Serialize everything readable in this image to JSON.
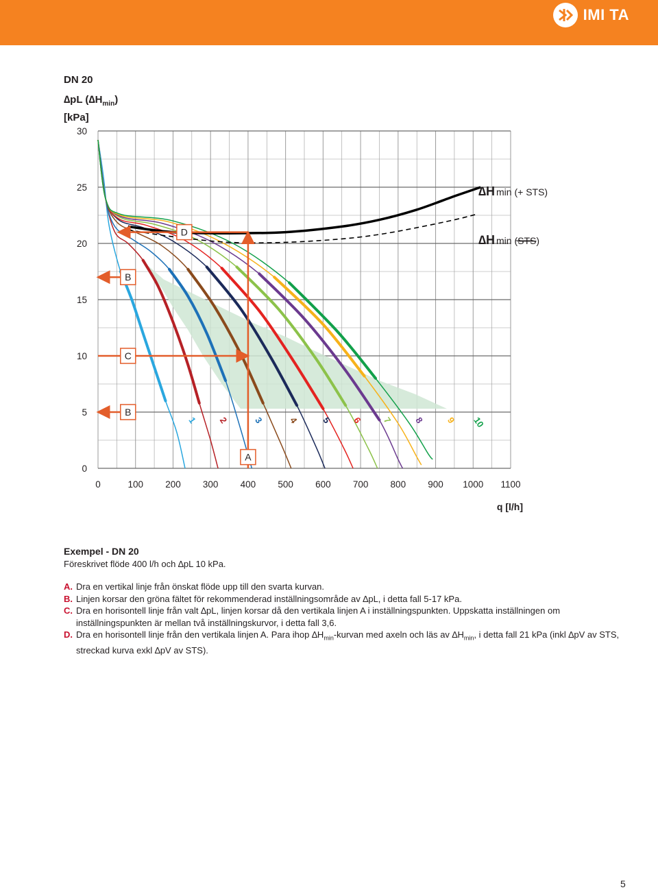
{
  "brand": {
    "name": "IMI TA",
    "logo": "imi-ta-logo-icon"
  },
  "page": {
    "heading": "DN 20",
    "number": "5"
  },
  "colors": {
    "header": "#f58220",
    "arrow": "#e35d2a",
    "green_field": "#cfe6d3",
    "grid": "#9a9a9a",
    "hmin_solid": "#000000",
    "hmin_dashed": "#000000"
  },
  "chart_data": {
    "type": "line",
    "title": "DN 20",
    "ylabel": "∆pL (∆Hmin) [kPa]",
    "ylabel_parts": [
      "∆pL (∆H",
      "min",
      ")",
      "[kPa]"
    ],
    "xlabel": "q [l/h]",
    "xlim": [
      0,
      1100
    ],
    "ylim": [
      0,
      30
    ],
    "xticks": [
      0,
      100,
      200,
      300,
      400,
      500,
      600,
      700,
      800,
      900,
      1000,
      1100
    ],
    "yticks": [
      0,
      5,
      10,
      15,
      20,
      25,
      30
    ],
    "grid": true,
    "settings": [
      {
        "name": "1",
        "color": "#2aa7df",
        "points": [
          [
            0,
            29.2
          ],
          [
            15,
            25.8
          ],
          [
            30,
            21.5
          ],
          [
            60,
            17.5
          ],
          [
            90,
            15.0
          ],
          [
            120,
            12.0
          ],
          [
            150,
            9.0
          ],
          [
            180,
            6.0
          ],
          [
            210,
            3.2
          ],
          [
            232,
            0
          ]
        ]
      },
      {
        "name": "2",
        "color": "#b62126",
        "points": [
          [
            0,
            29.2
          ],
          [
            20,
            24.0
          ],
          [
            45,
            21.0
          ],
          [
            80,
            20.0
          ],
          [
            120,
            18.5
          ],
          [
            160,
            16.2
          ],
          [
            200,
            13.0
          ],
          [
            240,
            9.2
          ],
          [
            270,
            5.8
          ],
          [
            300,
            2.5
          ],
          [
            320,
            0
          ]
        ]
      },
      {
        "name": "3",
        "color": "#1d71b8",
        "points": [
          [
            0,
            29.2
          ],
          [
            20,
            24.0
          ],
          [
            45,
            21.5
          ],
          [
            90,
            20.4
          ],
          [
            140,
            19.3
          ],
          [
            190,
            17.7
          ],
          [
            240,
            15.3
          ],
          [
            290,
            12.0
          ],
          [
            340,
            7.8
          ],
          [
            380,
            3.5
          ],
          [
            410,
            0
          ]
        ]
      },
      {
        "name": "4",
        "color": "#8a4a1c",
        "points": [
          [
            0,
            29.2
          ],
          [
            20,
            24.0
          ],
          [
            50,
            21.9
          ],
          [
            100,
            21.0
          ],
          [
            170,
            19.8
          ],
          [
            240,
            17.7
          ],
          [
            310,
            14.4
          ],
          [
            380,
            10.2
          ],
          [
            440,
            5.8
          ],
          [
            490,
            2.0
          ],
          [
            515,
            0
          ]
        ]
      },
      {
        "name": "5",
        "color": "#1b2a5a",
        "points": [
          [
            0,
            29.2
          ],
          [
            20,
            24.0
          ],
          [
            55,
            22.1
          ],
          [
            120,
            21.4
          ],
          [
            200,
            20.2
          ],
          [
            290,
            17.9
          ],
          [
            380,
            14.2
          ],
          [
            460,
            9.9
          ],
          [
            530,
            5.6
          ],
          [
            580,
            2.0
          ],
          [
            605,
            0
          ]
        ]
      },
      {
        "name": "6",
        "color": "#e42320",
        "points": [
          [
            0,
            29.2
          ],
          [
            20,
            24.0
          ],
          [
            55,
            22.2
          ],
          [
            130,
            21.6
          ],
          [
            230,
            20.3
          ],
          [
            330,
            17.8
          ],
          [
            430,
            14.0
          ],
          [
            520,
            9.6
          ],
          [
            600,
            5.3
          ],
          [
            655,
            1.8
          ],
          [
            680,
            0
          ]
        ]
      },
      {
        "name": "7",
        "color": "#8cc24a",
        "points": [
          [
            0,
            29.2
          ],
          [
            20,
            24.0
          ],
          [
            60,
            22.3
          ],
          [
            150,
            21.7
          ],
          [
            260,
            20.4
          ],
          [
            370,
            17.9
          ],
          [
            480,
            14.2
          ],
          [
            580,
            9.8
          ],
          [
            660,
            5.6
          ],
          [
            720,
            1.8
          ],
          [
            745,
            0
          ]
        ]
      },
      {
        "name": "8",
        "color": "#6b3a8f",
        "points": [
          [
            0,
            29.2
          ],
          [
            20,
            24.0
          ],
          [
            60,
            22.4
          ],
          [
            170,
            21.8
          ],
          [
            300,
            20.2
          ],
          [
            430,
            17.3
          ],
          [
            550,
            13.3
          ],
          [
            660,
            8.7
          ],
          [
            750,
            4.3
          ],
          [
            800,
            0.8
          ],
          [
            812,
            0
          ]
        ]
      },
      {
        "name": "9",
        "color": "#f7b21b",
        "points": [
          [
            0,
            29.2
          ],
          [
            20,
            24.0
          ],
          [
            60,
            22.5
          ],
          [
            190,
            21.9
          ],
          [
            330,
            20.1
          ],
          [
            470,
            17.0
          ],
          [
            600,
            12.8
          ],
          [
            710,
            8.2
          ],
          [
            800,
            4.0
          ],
          [
            850,
            1.0
          ],
          [
            862,
            0.3
          ]
        ]
      },
      {
        "name": "10",
        "color": "#12a04a",
        "points": [
          [
            0,
            29.2
          ],
          [
            20,
            24.0
          ],
          [
            60,
            22.6
          ],
          [
            200,
            22.0
          ],
          [
            360,
            20.0
          ],
          [
            510,
            16.5
          ],
          [
            640,
            12.1
          ],
          [
            740,
            8.0
          ],
          [
            830,
            4.0
          ],
          [
            880,
            1.3
          ],
          [
            892,
            0.8
          ]
        ]
      }
    ],
    "hmin_sts": {
      "name": "∆H min (+ STS)",
      "label_main": "∆H",
      "label_rest": "min (+ STS)",
      "points": [
        [
          80,
          21.5
        ],
        [
          200,
          21.0
        ],
        [
          350,
          20.9
        ],
        [
          500,
          21.0
        ],
        [
          650,
          21.5
        ],
        [
          750,
          22.1
        ],
        [
          850,
          23.0
        ],
        [
          950,
          24.2
        ],
        [
          1020,
          25.0
        ]
      ]
    },
    "hmin_no_sts": {
      "name": "∆H min (STS)",
      "label_main": "∆H",
      "label_rest": "min (",
      "label_struck": "STS",
      "label_tail": ")",
      "points": [
        [
          80,
          21.2
        ],
        [
          200,
          20.6
        ],
        [
          350,
          20.1
        ],
        [
          500,
          20.1
        ],
        [
          650,
          20.4
        ],
        [
          750,
          20.8
        ],
        [
          850,
          21.4
        ],
        [
          950,
          22.1
        ],
        [
          1010,
          22.6
        ]
      ]
    },
    "green_field": [
      [
        110,
        18.7
      ],
      [
        175,
        16.8
      ],
      [
        255,
        15.5
      ],
      [
        335,
        14.2
      ],
      [
        415,
        12.9
      ],
      [
        500,
        11.7
      ],
      [
        580,
        10.4
      ],
      [
        665,
        9.1
      ],
      [
        750,
        7.8
      ],
      [
        845,
        6.6
      ],
      [
        930,
        5.3
      ],
      [
        380,
        5.3
      ],
      [
        330,
        7.5
      ],
      [
        280,
        10.0
      ],
      [
        240,
        12.3
      ],
      [
        200,
        14.3
      ],
      [
        170,
        16.0
      ],
      [
        140,
        17.5
      ]
    ],
    "annotations": [
      {
        "label": "A",
        "x": 400,
        "y": 1.0
      },
      {
        "label": "B",
        "x": 80,
        "y": 17.0
      },
      {
        "label": "B",
        "x": 80,
        "y": 5.0
      },
      {
        "label": "C",
        "x": 80,
        "y": 10.0
      },
      {
        "label": "D",
        "x": 230,
        "y": 21.0
      }
    ],
    "arrows": [
      {
        "from": [
          400,
          0
        ],
        "to": [
          400,
          21.0
        ]
      },
      {
        "from": [
          400,
          21.0
        ],
        "to": [
          55,
          21.0
        ]
      },
      {
        "from": [
          70,
          17.0
        ],
        "to": [
          0,
          17.0
        ]
      },
      {
        "from": [
          70,
          5.0
        ],
        "to": [
          0,
          5.0
        ]
      },
      {
        "from": [
          0,
          10.0
        ],
        "to": [
          400,
          10.0
        ]
      }
    ]
  },
  "example": {
    "title": "Exempel - DN 20",
    "given": "Föreskrivet flöde 400 l/h och ∆pL 10 kPa.",
    "steps": [
      {
        "key": "A.",
        "parts": [
          "Dra en vertikal linje från önskat flöde upp till den svarta kurvan."
        ]
      },
      {
        "key": "B.",
        "parts": [
          "Linjen korsar den gröna fältet för rekommenderad inställningsområde av ∆pL, i detta fall 5-17 kPa."
        ]
      },
      {
        "key": "C.",
        "parts": [
          "Dra en horisontell linje från valt ∆pL, linjen korsar då den vertikala linjen A i inställningspunkten. Uppskatta inställningen om inställningspunkten är mellan två inställningskurvor, i detta fall 3,6."
        ]
      },
      {
        "key": "D.",
        "parts": [
          "Dra en horisontell linje från den vertikala linjen A. Para ihop ∆H",
          "min",
          "-kurvan med axeln och läs av ∆H",
          "min",
          ", i detta fall 21 kPa (inkl ∆pV av STS, streckad kurva exkl ∆pV av STS)."
        ]
      }
    ]
  }
}
